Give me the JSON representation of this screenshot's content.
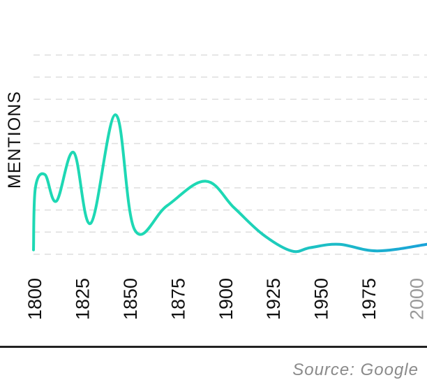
{
  "chart_data": {
    "type": "line",
    "ylabel": "MENTIONS",
    "source": "Source: Google",
    "x_ticks": [
      "1800",
      "1825",
      "1850",
      "1875",
      "1900",
      "1925",
      "1950",
      "1975",
      "2000"
    ],
    "xlim": [
      1800,
      2006
    ],
    "ylim": [
      0,
      10
    ],
    "grid": true,
    "colors": {
      "start": "#1ed8b4",
      "end": "#1aa2d8",
      "tick": "#111111",
      "tick_muted": "#9a9a9a",
      "grid": "#dedede"
    },
    "x": [
      1800,
      1801,
      1806,
      1812,
      1821,
      1830,
      1843,
      1853,
      1870,
      1890,
      1905,
      1920,
      1935,
      1945,
      1960,
      1980,
      2006
    ],
    "values": [
      0.2,
      3.0,
      3.6,
      2.4,
      4.6,
      1.4,
      6.3,
      1.1,
      2.2,
      3.3,
      2.1,
      0.9,
      0.15,
      0.3,
      0.45,
      0.15,
      0.45
    ]
  }
}
